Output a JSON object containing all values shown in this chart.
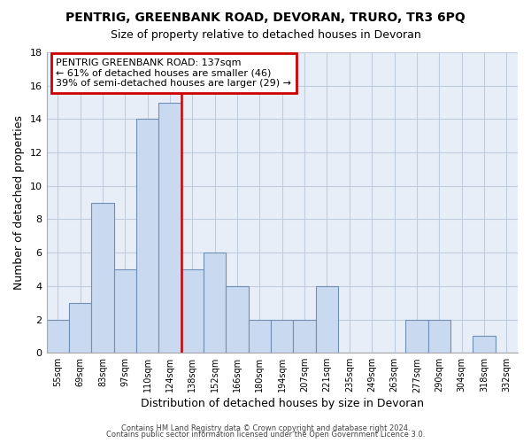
{
  "title": "PENTRIG, GREENBANK ROAD, DEVORAN, TRURO, TR3 6PQ",
  "subtitle": "Size of property relative to detached houses in Devoran",
  "xlabel": "Distribution of detached houses by size in Devoran",
  "ylabel": "Number of detached properties",
  "bar_labels": [
    "55sqm",
    "69sqm",
    "83sqm",
    "97sqm",
    "110sqm",
    "124sqm",
    "138sqm",
    "152sqm",
    "166sqm",
    "180sqm",
    "194sqm",
    "207sqm",
    "221sqm",
    "235sqm",
    "249sqm",
    "263sqm",
    "277sqm",
    "290sqm",
    "304sqm",
    "318sqm",
    "332sqm"
  ],
  "bar_values": [
    2,
    3,
    9,
    5,
    14,
    15,
    5,
    6,
    4,
    2,
    2,
    2,
    4,
    0,
    0,
    0,
    2,
    2,
    0,
    1,
    0
  ],
  "bar_color": "#c9d9ef",
  "bar_edge_color": "#7090b8",
  "property_line_color": "#cc0000",
  "property_line_index": 6,
  "annotation_title": "PENTRIG GREENBANK ROAD: 137sqm",
  "annotation_line1": "← 61% of detached houses are smaller (46)",
  "annotation_line2": "39% of semi-detached houses are larger (29) →",
  "annotation_box_color": "#ffffff",
  "annotation_box_edge_color": "#cc0000",
  "ylim": [
    0,
    18
  ],
  "yticks": [
    0,
    2,
    4,
    6,
    8,
    10,
    12,
    14,
    16,
    18
  ],
  "footer1": "Contains HM Land Registry data © Crown copyright and database right 2024.",
  "footer2": "Contains public sector information licensed under the Open Government Licence 3.0.",
  "plot_bg_color": "#e8eef8",
  "fig_bg_color": "#ffffff",
  "grid_color": "#c0cce0"
}
